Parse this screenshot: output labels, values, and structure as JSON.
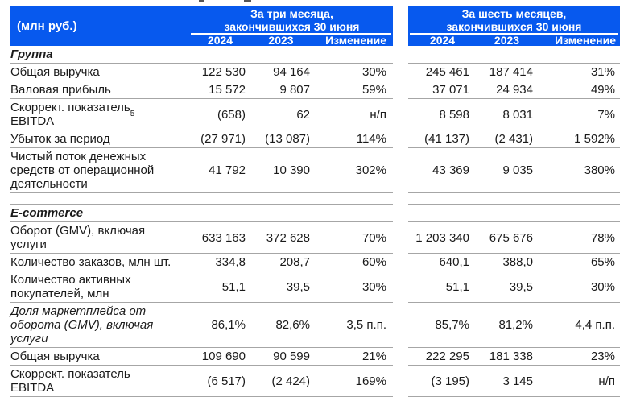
{
  "colors": {
    "header_bg": "#0759EE",
    "header_text": "#ffffff",
    "line": "#a6a6a6",
    "text": "#1a1a1a"
  },
  "header": {
    "units_label": "(млн руб.)",
    "groups": [
      {
        "line1": "За три месяца,",
        "line2": "закончившихся 30 июня",
        "cols": [
          "2024",
          "2023",
          "Изменение"
        ]
      },
      {
        "line1": "За шесть месяцев,",
        "line2": "закончившихся 30 июня",
        "cols": [
          "2024",
          "2023",
          "Изменение"
        ]
      }
    ]
  },
  "sections": [
    {
      "title": "Группа",
      "rows": [
        {
          "label": "Общая выручка",
          "q2024": "122 530",
          "q2023": "94 164",
          "qchg": "30%",
          "h2024": "245 461",
          "h2023": "187 414",
          "hchg": "31%"
        },
        {
          "label": "Валовая прибыль",
          "q2024": "15 572",
          "q2023": "9 807",
          "qchg": "59%",
          "h2024": "37 071",
          "h2023": "24 934",
          "hchg": "49%"
        },
        {
          "label": "Скоррект. показатель\nEBITDA",
          "sup": "5",
          "q2024": "(658)",
          "q2023": "62",
          "qchg": "н/п",
          "h2024": "8 598",
          "h2023": "8 031",
          "hchg": "7%"
        },
        {
          "label": "Убыток за период",
          "q2024": "(27 971)",
          "q2023": "(13 087)",
          "qchg": "114%",
          "h2024": "(41 137)",
          "h2023": "(2 431)",
          "hchg": "1 592%"
        },
        {
          "label": "Чистый поток денежных\nсредств от операционной\nдеятельности",
          "q2024": "41 792",
          "q2023": "10 390",
          "qchg": "302%",
          "h2024": "43 369",
          "h2023": "9 035",
          "hchg": "380%"
        }
      ]
    },
    {
      "title": "E-commerce",
      "rows": [
        {
          "label": "Оборот (GMV), включая\nуслуги",
          "q2024": "633 163",
          "q2023": "372 628",
          "qchg": "70%",
          "h2024": "1 203 340",
          "h2023": "675 676",
          "hchg": "78%"
        },
        {
          "label": "Количество заказов, млн шт.",
          "q2024": "334,8",
          "q2023": "208,7",
          "qchg": "60%",
          "h2024": "640,1",
          "h2023": "388,0",
          "hchg": "65%"
        },
        {
          "label": "Количество активных\nпокупателей, млн",
          "q2024": "51,1",
          "q2023": "39,5",
          "qchg": "30%",
          "h2024": "51,1",
          "h2023": "39,5",
          "hchg": "30%"
        },
        {
          "label": "Доля маркетплейса от\nоборота (GMV), включая\nуслуги",
          "q2024": "86,1%",
          "q2023": "82,6%",
          "qchg": "3,5 п.п.",
          "h2024": "85,7%",
          "h2023": "81,2%",
          "hchg": "4,4 п.п."
        },
        {
          "label": "Общая выручка",
          "q2024": "109 690",
          "q2023": "90 599",
          "qchg": "21%",
          "h2024": "222 295",
          "h2023": "181 338",
          "hchg": "23%"
        },
        {
          "label": "Скоррект. показатель\nEBITDA",
          "q2024": "(6 517)",
          "q2023": "(2 424)",
          "qchg": "169%",
          "h2024": "(3 195)",
          "h2023": "3 145",
          "hchg": "н/п"
        }
      ]
    }
  ]
}
